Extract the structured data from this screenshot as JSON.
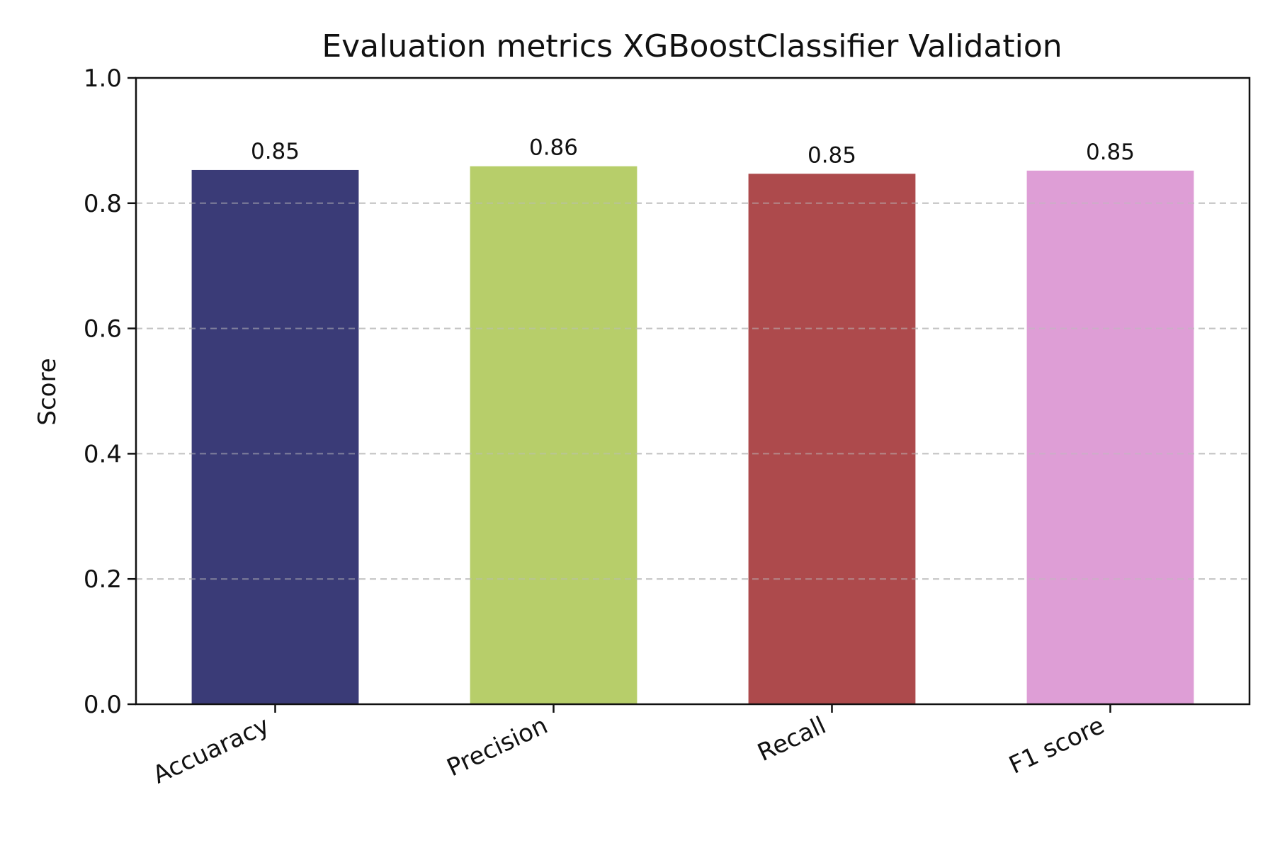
{
  "chart_data": {
    "type": "bar",
    "title": "Evaluation metrics XGBoostClassifier Validation",
    "xlabel": "",
    "ylabel": "Score",
    "categories": [
      "Accuaracy",
      "Precision",
      "Recall",
      "F1 score"
    ],
    "values": [
      0.853,
      0.859,
      0.847,
      0.852
    ],
    "value_labels": [
      "0.85",
      "0.86",
      "0.85",
      "0.85"
    ],
    "colors": [
      "#3a3b77",
      "#b7ce6a",
      "#ad4a4c",
      "#de9ed6"
    ],
    "ylim": [
      0,
      1.0
    ],
    "yticks": [
      0.0,
      0.2,
      0.4,
      0.6,
      0.8,
      1.0
    ],
    "ytick_labels": [
      "0.0",
      "0.2",
      "0.4",
      "0.6",
      "0.8",
      "1.0"
    ],
    "grid": "y-dashed",
    "legend": "none"
  }
}
